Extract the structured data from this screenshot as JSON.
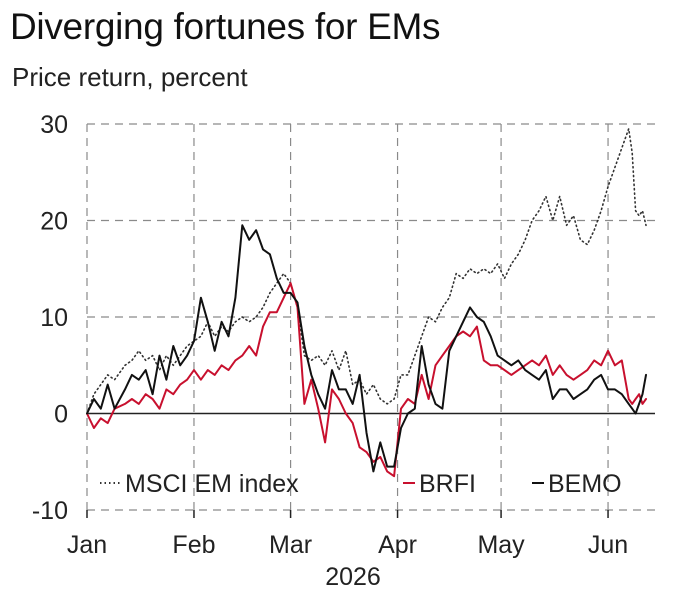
{
  "chart_data": {
    "type": "line",
    "title": "Diverging fortunes for EMs",
    "subtitle": "Price return, percent",
    "xlabel": "2026",
    "ylabel": "",
    "ylim": [
      -10,
      30
    ],
    "xlim": [
      "2026-01-01",
      "2026-06-12"
    ],
    "yticks": [
      -10,
      0,
      10,
      20,
      30
    ],
    "ytick_labels": [
      "-10",
      "0",
      "10",
      "20",
      "30"
    ],
    "xticks": [
      "2026-01-01",
      "2026-02-01",
      "2026-03-01",
      "2026-04-01",
      "2026-05-01",
      "2026-06-01"
    ],
    "xtick_labels": [
      "Jan",
      "Feb",
      "Mar",
      "Apr",
      "May",
      "Jun"
    ],
    "grid": true,
    "legend_position": "bottom-right",
    "series": [
      {
        "name": "MSCI EM index",
        "color": "#333333",
        "style": "dotted",
        "points": [
          [
            "2026-01-01",
            0
          ],
          [
            "2026-01-03",
            2
          ],
          [
            "2026-01-05",
            3
          ],
          [
            "2026-01-07",
            4
          ],
          [
            "2026-01-09",
            3.5
          ],
          [
            "2026-01-12",
            5
          ],
          [
            "2026-01-14",
            5.5
          ],
          [
            "2026-01-16",
            6.5
          ],
          [
            "2026-01-18",
            5.5
          ],
          [
            "2026-01-20",
            6
          ],
          [
            "2026-01-22",
            4.5
          ],
          [
            "2026-01-24",
            6
          ],
          [
            "2026-01-26",
            5
          ],
          [
            "2026-01-28",
            6
          ],
          [
            "2026-01-30",
            7
          ],
          [
            "2026-02-01",
            7.5
          ],
          [
            "2026-02-03",
            8
          ],
          [
            "2026-02-05",
            9.5
          ],
          [
            "2026-02-07",
            8
          ],
          [
            "2026-02-09",
            9
          ],
          [
            "2026-02-11",
            8.5
          ],
          [
            "2026-02-13",
            9.5
          ],
          [
            "2026-02-15",
            10
          ],
          [
            "2026-02-17",
            9.5
          ],
          [
            "2026-02-19",
            10
          ],
          [
            "2026-02-21",
            11
          ],
          [
            "2026-02-23",
            12.5
          ],
          [
            "2026-02-25",
            13.5
          ],
          [
            "2026-02-27",
            14.5
          ],
          [
            "2026-03-01",
            13.5
          ],
          [
            "2026-03-03",
            11
          ],
          [
            "2026-03-05",
            6
          ],
          [
            "2026-03-07",
            5.5
          ],
          [
            "2026-03-09",
            6
          ],
          [
            "2026-03-11",
            5
          ],
          [
            "2026-03-13",
            6.5
          ],
          [
            "2026-03-15",
            4.5
          ],
          [
            "2026-03-17",
            6.5
          ],
          [
            "2026-03-19",
            3
          ],
          [
            "2026-03-21",
            3.5
          ],
          [
            "2026-03-23",
            2
          ],
          [
            "2026-03-25",
            3
          ],
          [
            "2026-03-27",
            1.5
          ],
          [
            "2026-03-29",
            1
          ],
          [
            "2026-03-31",
            1.5
          ],
          [
            "2026-04-02",
            4
          ],
          [
            "2026-04-04",
            4
          ],
          [
            "2026-04-06",
            6
          ],
          [
            "2026-04-08",
            8
          ],
          [
            "2026-04-10",
            10
          ],
          [
            "2026-04-12",
            9.5
          ],
          [
            "2026-04-14",
            11
          ],
          [
            "2026-04-16",
            12
          ],
          [
            "2026-04-18",
            14.5
          ],
          [
            "2026-04-20",
            14
          ],
          [
            "2026-04-22",
            15
          ],
          [
            "2026-04-24",
            14.5
          ],
          [
            "2026-04-26",
            15
          ],
          [
            "2026-04-28",
            14.5
          ],
          [
            "2026-04-30",
            15.5
          ],
          [
            "2026-05-02",
            14
          ],
          [
            "2026-05-04",
            15.5
          ],
          [
            "2026-05-06",
            16.5
          ],
          [
            "2026-05-08",
            18
          ],
          [
            "2026-05-10",
            20
          ],
          [
            "2026-05-12",
            21
          ],
          [
            "2026-05-14",
            22.5
          ],
          [
            "2026-05-16",
            20
          ],
          [
            "2026-05-18",
            22.5
          ],
          [
            "2026-05-20",
            19.5
          ],
          [
            "2026-05-22",
            20.5
          ],
          [
            "2026-05-24",
            18
          ],
          [
            "2026-05-26",
            17.5
          ],
          [
            "2026-05-28",
            19
          ],
          [
            "2026-05-30",
            21
          ],
          [
            "2026-06-01",
            23.5
          ],
          [
            "2026-06-03",
            25.5
          ],
          [
            "2026-06-05",
            27.5
          ],
          [
            "2026-06-07",
            29.5
          ],
          [
            "2026-06-08",
            27
          ],
          [
            "2026-06-09",
            21
          ],
          [
            "2026-06-10",
            20.5
          ],
          [
            "2026-06-11",
            21
          ],
          [
            "2026-06-12",
            19.5
          ]
        ]
      },
      {
        "name": "BRFI",
        "color": "#c8102e",
        "style": "solid",
        "points": [
          [
            "2026-01-01",
            0
          ],
          [
            "2026-01-03",
            -1.5
          ],
          [
            "2026-01-05",
            -0.5
          ],
          [
            "2026-01-07",
            -1
          ],
          [
            "2026-01-09",
            0.5
          ],
          [
            "2026-01-12",
            1
          ],
          [
            "2026-01-14",
            1.5
          ],
          [
            "2026-01-16",
            1
          ],
          [
            "2026-01-18",
            2
          ],
          [
            "2026-01-20",
            1.5
          ],
          [
            "2026-01-22",
            0.5
          ],
          [
            "2026-01-24",
            2.5
          ],
          [
            "2026-01-26",
            2
          ],
          [
            "2026-01-28",
            3
          ],
          [
            "2026-01-30",
            3.5
          ],
          [
            "2026-02-01",
            4.5
          ],
          [
            "2026-02-03",
            3.5
          ],
          [
            "2026-02-05",
            4.5
          ],
          [
            "2026-02-07",
            4
          ],
          [
            "2026-02-09",
            5
          ],
          [
            "2026-02-11",
            4.5
          ],
          [
            "2026-02-13",
            5.5
          ],
          [
            "2026-02-15",
            6
          ],
          [
            "2026-02-17",
            7
          ],
          [
            "2026-02-19",
            6
          ],
          [
            "2026-02-21",
            9
          ],
          [
            "2026-02-23",
            10.5
          ],
          [
            "2026-02-25",
            10.5
          ],
          [
            "2026-02-27",
            12
          ],
          [
            "2026-03-01",
            13.5
          ],
          [
            "2026-03-03",
            11
          ],
          [
            "2026-03-05",
            1
          ],
          [
            "2026-03-07",
            3.5
          ],
          [
            "2026-03-09",
            0.5
          ],
          [
            "2026-03-11",
            -3
          ],
          [
            "2026-03-13",
            2.5
          ],
          [
            "2026-03-15",
            1.5
          ],
          [
            "2026-03-17",
            0
          ],
          [
            "2026-03-19",
            -1
          ],
          [
            "2026-03-21",
            -3.5
          ],
          [
            "2026-03-23",
            -4
          ],
          [
            "2026-03-25",
            -5
          ],
          [
            "2026-03-27",
            -4.5
          ],
          [
            "2026-03-29",
            -6
          ],
          [
            "2026-03-31",
            -6.5
          ],
          [
            "2026-04-02",
            0.5
          ],
          [
            "2026-04-04",
            1.5
          ],
          [
            "2026-04-06",
            1
          ],
          [
            "2026-04-08",
            4
          ],
          [
            "2026-04-10",
            1.5
          ],
          [
            "2026-04-12",
            5
          ],
          [
            "2026-04-14",
            6
          ],
          [
            "2026-04-16",
            7
          ],
          [
            "2026-04-18",
            8
          ],
          [
            "2026-04-20",
            8.5
          ],
          [
            "2026-04-22",
            8
          ],
          [
            "2026-04-24",
            9
          ],
          [
            "2026-04-26",
            5.5
          ],
          [
            "2026-04-28",
            5
          ],
          [
            "2026-04-30",
            5
          ],
          [
            "2026-05-02",
            4.5
          ],
          [
            "2026-05-04",
            4
          ],
          [
            "2026-05-06",
            4.5
          ],
          [
            "2026-05-08",
            5
          ],
          [
            "2026-05-10",
            5.5
          ],
          [
            "2026-05-12",
            5
          ],
          [
            "2026-05-14",
            6
          ],
          [
            "2026-05-16",
            4
          ],
          [
            "2026-05-18",
            5
          ],
          [
            "2026-05-20",
            4
          ],
          [
            "2026-05-22",
            3.5
          ],
          [
            "2026-05-24",
            4
          ],
          [
            "2026-05-26",
            4.5
          ],
          [
            "2026-05-28",
            5.5
          ],
          [
            "2026-05-30",
            5
          ],
          [
            "2026-06-01",
            6.5
          ],
          [
            "2026-06-03",
            5
          ],
          [
            "2026-06-05",
            5.5
          ],
          [
            "2026-06-07",
            1.5
          ],
          [
            "2026-06-08",
            1
          ],
          [
            "2026-06-09",
            1.5
          ],
          [
            "2026-06-10",
            2
          ],
          [
            "2026-06-11",
            1
          ],
          [
            "2026-06-12",
            1.5
          ]
        ]
      },
      {
        "name": "BEMO",
        "color": "#111111",
        "style": "solid",
        "points": [
          [
            "2026-01-01",
            0
          ],
          [
            "2026-01-03",
            1.5
          ],
          [
            "2026-01-05",
            0.5
          ],
          [
            "2026-01-07",
            3
          ],
          [
            "2026-01-09",
            0.5
          ],
          [
            "2026-01-12",
            2.5
          ],
          [
            "2026-01-14",
            4
          ],
          [
            "2026-01-16",
            3.5
          ],
          [
            "2026-01-18",
            4.5
          ],
          [
            "2026-01-20",
            2
          ],
          [
            "2026-01-22",
            6
          ],
          [
            "2026-01-24",
            3.5
          ],
          [
            "2026-01-26",
            7
          ],
          [
            "2026-01-28",
            5
          ],
          [
            "2026-01-30",
            6
          ],
          [
            "2026-02-01",
            7.5
          ],
          [
            "2026-02-03",
            12
          ],
          [
            "2026-02-05",
            9.5
          ],
          [
            "2026-02-07",
            6.5
          ],
          [
            "2026-02-09",
            9.5
          ],
          [
            "2026-02-11",
            8
          ],
          [
            "2026-02-13",
            12
          ],
          [
            "2026-02-15",
            19.5
          ],
          [
            "2026-02-17",
            18
          ],
          [
            "2026-02-19",
            19
          ],
          [
            "2026-02-21",
            17
          ],
          [
            "2026-02-23",
            16.5
          ],
          [
            "2026-02-25",
            14
          ],
          [
            "2026-02-27",
            12.5
          ],
          [
            "2026-03-01",
            12.5
          ],
          [
            "2026-03-03",
            11.5
          ],
          [
            "2026-03-05",
            7
          ],
          [
            "2026-03-07",
            4
          ],
          [
            "2026-03-09",
            2
          ],
          [
            "2026-03-11",
            0.5
          ],
          [
            "2026-03-13",
            4.5
          ],
          [
            "2026-03-15",
            2.5
          ],
          [
            "2026-03-17",
            2.5
          ],
          [
            "2026-03-19",
            1
          ],
          [
            "2026-03-21",
            4
          ],
          [
            "2026-03-23",
            -2
          ],
          [
            "2026-03-25",
            -6
          ],
          [
            "2026-03-27",
            -3
          ],
          [
            "2026-03-29",
            -5.5
          ],
          [
            "2026-03-31",
            -5.5
          ],
          [
            "2026-04-02",
            -1.5
          ],
          [
            "2026-04-04",
            0
          ],
          [
            "2026-04-06",
            0.5
          ],
          [
            "2026-04-08",
            7
          ],
          [
            "2026-04-10",
            3
          ],
          [
            "2026-04-12",
            1
          ],
          [
            "2026-04-14",
            0.5
          ],
          [
            "2026-04-16",
            6.5
          ],
          [
            "2026-04-18",
            8
          ],
          [
            "2026-04-20",
            9.5
          ],
          [
            "2026-04-22",
            11
          ],
          [
            "2026-04-24",
            10
          ],
          [
            "2026-04-26",
            9.5
          ],
          [
            "2026-04-28",
            8
          ],
          [
            "2026-04-30",
            6
          ],
          [
            "2026-05-02",
            5.5
          ],
          [
            "2026-05-04",
            5
          ],
          [
            "2026-05-06",
            5.5
          ],
          [
            "2026-05-08",
            4.5
          ],
          [
            "2026-05-10",
            4
          ],
          [
            "2026-05-12",
            3.5
          ],
          [
            "2026-05-14",
            4.5
          ],
          [
            "2026-05-16",
            1.5
          ],
          [
            "2026-05-18",
            2.5
          ],
          [
            "2026-05-20",
            2.5
          ],
          [
            "2026-05-22",
            1.5
          ],
          [
            "2026-05-24",
            2
          ],
          [
            "2026-05-26",
            2.5
          ],
          [
            "2026-05-28",
            3.5
          ],
          [
            "2026-05-30",
            4
          ],
          [
            "2026-06-01",
            2.5
          ],
          [
            "2026-06-03",
            2.5
          ],
          [
            "2026-06-05",
            2
          ],
          [
            "2026-06-07",
            1
          ],
          [
            "2026-06-08",
            0.5
          ],
          [
            "2026-06-09",
            0
          ],
          [
            "2026-06-10",
            1
          ],
          [
            "2026-06-11",
            2
          ],
          [
            "2026-06-12",
            4
          ]
        ]
      }
    ]
  }
}
